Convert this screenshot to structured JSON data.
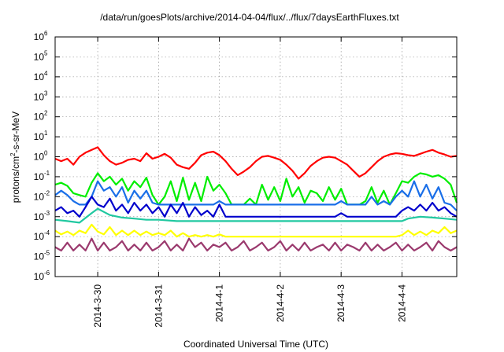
{
  "chart_data": {
    "type": "line",
    "title": "/data/run/goesPlots/archive/2014-04-04/flux/../flux/7daysEarthFluxes.txt",
    "xlabel": "Coordinated Universal Time (UTC)",
    "ylabel": {
      "base": "protons/cm",
      "sup": "2",
      "rest": "-s-sr-MeV"
    },
    "yscale": "log",
    "ylim_exponents": [
      -6,
      6
    ],
    "y_ticks": [
      {
        "base": "10",
        "exp": "-6"
      },
      {
        "base": "10",
        "exp": "-5"
      },
      {
        "base": "10",
        "exp": "-4"
      },
      {
        "base": "10",
        "exp": "-3"
      },
      {
        "base": "10",
        "exp": "-2"
      },
      {
        "base": "10",
        "exp": "-1"
      },
      {
        "base": "10",
        "exp": "0"
      },
      {
        "base": "10",
        "exp": "1"
      },
      {
        "base": "10",
        "exp": "2"
      },
      {
        "base": "10",
        "exp": "3"
      },
      {
        "base": "10",
        "exp": "4"
      },
      {
        "base": "10",
        "exp": "5"
      },
      {
        "base": "10",
        "exp": "6"
      }
    ],
    "x_range_days": [
      -1.7,
      4.9
    ],
    "x_ticks": [
      {
        "label": "2014-3-30",
        "day": -1
      },
      {
        "label": "2014-3-31",
        "day": 0
      },
      {
        "label": "2014-4-1",
        "day": 1
      },
      {
        "label": "2014-4-2",
        "day": 2
      },
      {
        "label": "2014-4-3",
        "day": 3
      },
      {
        "label": "2014-4-4",
        "day": 4
      }
    ],
    "grid": true,
    "series": [
      {
        "color": "#ff0000",
        "x": [
          -1.7,
          -1.6,
          -1.5,
          -1.4,
          -1.3,
          -1.2,
          -1.1,
          -1.0,
          -0.9,
          -0.8,
          -0.7,
          -0.6,
          -0.5,
          -0.4,
          -0.3,
          -0.2,
          -0.1,
          0.0,
          0.1,
          0.2,
          0.3,
          0.4,
          0.5,
          0.6,
          0.7,
          0.8,
          0.9,
          1.0,
          1.1,
          1.2,
          1.3,
          1.4,
          1.5,
          1.6,
          1.7,
          1.8,
          1.9,
          2.0,
          2.1,
          2.2,
          2.3,
          2.4,
          2.5,
          2.6,
          2.7,
          2.8,
          2.9,
          3.0,
          3.1,
          3.2,
          3.3,
          3.4,
          3.5,
          3.6,
          3.7,
          3.8,
          3.9,
          4.0,
          4.1,
          4.2,
          4.3,
          4.4,
          4.5,
          4.6,
          4.7,
          4.8,
          4.9
        ],
        "y": [
          0.8,
          0.6,
          0.8,
          0.4,
          1.0,
          1.6,
          2.2,
          3.0,
          1.2,
          0.6,
          0.4,
          0.5,
          0.7,
          0.8,
          0.6,
          1.5,
          0.8,
          1.0,
          1.4,
          0.9,
          0.4,
          0.3,
          0.25,
          0.5,
          1.2,
          1.6,
          1.8,
          1.2,
          0.6,
          0.25,
          0.12,
          0.18,
          0.3,
          0.6,
          1.0,
          1.1,
          0.9,
          0.7,
          0.4,
          0.2,
          0.08,
          0.15,
          0.35,
          0.6,
          0.9,
          1.0,
          0.9,
          0.6,
          0.4,
          0.2,
          0.1,
          0.15,
          0.3,
          0.6,
          1.0,
          1.3,
          1.5,
          1.4,
          1.2,
          1.1,
          1.4,
          1.8,
          2.2,
          1.6,
          1.3,
          1.0,
          1.1
        ]
      },
      {
        "color": "#00ee00",
        "x": [
          -1.7,
          -1.6,
          -1.5,
          -1.4,
          -1.3,
          -1.2,
          -1.1,
          -1.0,
          -0.9,
          -0.8,
          -0.7,
          -0.6,
          -0.5,
          -0.4,
          -0.3,
          -0.2,
          -0.1,
          0.0,
          0.1,
          0.2,
          0.3,
          0.4,
          0.5,
          0.6,
          0.7,
          0.8,
          0.9,
          1.0,
          1.1,
          1.2,
          1.3,
          1.4,
          1.5,
          1.6,
          1.7,
          1.8,
          1.9,
          2.0,
          2.1,
          2.2,
          2.3,
          2.4,
          2.5,
          2.6,
          2.7,
          2.8,
          2.9,
          3.0,
          3.1,
          3.2,
          3.3,
          3.4,
          3.5,
          3.6,
          3.7,
          3.8,
          3.9,
          4.0,
          4.1,
          4.2,
          4.3,
          4.4,
          4.5,
          4.6,
          4.7,
          4.8,
          4.9
        ],
        "y": [
          0.04,
          0.05,
          0.035,
          0.015,
          0.012,
          0.01,
          0.05,
          0.15,
          0.06,
          0.1,
          0.04,
          0.08,
          0.02,
          0.06,
          0.03,
          0.09,
          0.012,
          0.004,
          0.01,
          0.06,
          0.006,
          0.09,
          0.007,
          0.05,
          0.006,
          0.1,
          0.02,
          0.04,
          0.015,
          0.004,
          0.004,
          0.004,
          0.008,
          0.004,
          0.04,
          0.007,
          0.03,
          0.006,
          0.08,
          0.01,
          0.03,
          0.005,
          0.02,
          0.015,
          0.006,
          0.03,
          0.007,
          0.025,
          0.004,
          0.004,
          0.004,
          0.006,
          0.03,
          0.005,
          0.02,
          0.004,
          0.015,
          0.06,
          0.05,
          0.1,
          0.15,
          0.13,
          0.1,
          0.12,
          0.08,
          0.04,
          0.005
        ]
      },
      {
        "color": "#1a6fe8",
        "x": [
          -1.7,
          -1.6,
          -1.5,
          -1.4,
          -1.3,
          -1.2,
          -1.1,
          -1.0,
          -0.9,
          -0.8,
          -0.7,
          -0.6,
          -0.5,
          -0.4,
          -0.3,
          -0.2,
          -0.1,
          0.0,
          0.1,
          0.2,
          0.3,
          0.4,
          0.5,
          0.6,
          0.7,
          0.8,
          0.9,
          1.0,
          1.1,
          1.2,
          1.3,
          1.4,
          1.5,
          1.6,
          1.7,
          1.8,
          1.9,
          2.0,
          2.1,
          2.2,
          2.3,
          2.4,
          2.5,
          2.6,
          2.7,
          2.8,
          2.9,
          3.0,
          3.1,
          3.2,
          3.3,
          3.4,
          3.5,
          3.6,
          3.7,
          3.8,
          3.9,
          4.0,
          4.1,
          4.2,
          4.3,
          4.4,
          4.5,
          4.6,
          4.7,
          4.8,
          4.9
        ],
        "y": [
          0.012,
          0.02,
          0.012,
          0.006,
          0.004,
          0.004,
          0.01,
          0.06,
          0.02,
          0.03,
          0.01,
          0.03,
          0.005,
          0.02,
          0.008,
          0.02,
          0.005,
          0.004,
          0.004,
          0.004,
          0.004,
          0.004,
          0.004,
          0.004,
          0.004,
          0.004,
          0.004,
          0.006,
          0.004,
          0.004,
          0.004,
          0.004,
          0.004,
          0.004,
          0.004,
          0.004,
          0.004,
          0.004,
          0.004,
          0.004,
          0.004,
          0.004,
          0.004,
          0.004,
          0.004,
          0.004,
          0.004,
          0.006,
          0.004,
          0.004,
          0.004,
          0.004,
          0.01,
          0.004,
          0.006,
          0.004,
          0.01,
          0.02,
          0.01,
          0.06,
          0.01,
          0.04,
          0.008,
          0.03,
          0.005,
          0.004,
          0.002
        ]
      },
      {
        "color": "#0000cc",
        "x": [
          -1.7,
          -1.6,
          -1.5,
          -1.4,
          -1.3,
          -1.2,
          -1.1,
          -1.0,
          -0.9,
          -0.8,
          -0.7,
          -0.6,
          -0.5,
          -0.4,
          -0.3,
          -0.2,
          -0.1,
          0.0,
          0.1,
          0.2,
          0.3,
          0.4,
          0.5,
          0.6,
          0.7,
          0.8,
          0.9,
          1.0,
          1.1,
          1.2,
          1.3,
          1.4,
          1.5,
          1.6,
          1.7,
          1.8,
          1.9,
          2.0,
          2.1,
          2.2,
          2.3,
          2.4,
          2.5,
          2.6,
          2.7,
          2.8,
          2.9,
          3.0,
          3.1,
          3.2,
          3.3,
          3.4,
          3.5,
          3.6,
          3.7,
          3.8,
          3.9,
          4.0,
          4.1,
          4.2,
          4.3,
          4.4,
          4.5,
          4.6,
          4.7,
          4.8,
          4.9
        ],
        "y": [
          0.002,
          0.003,
          0.0015,
          0.002,
          0.001,
          0.003,
          0.01,
          0.004,
          0.003,
          0.008,
          0.002,
          0.004,
          0.0015,
          0.005,
          0.002,
          0.004,
          0.0015,
          0.003,
          0.001,
          0.004,
          0.0015,
          0.005,
          0.001,
          0.003,
          0.0012,
          0.002,
          0.001,
          0.004,
          0.001,
          0.001,
          0.001,
          0.001,
          0.001,
          0.001,
          0.001,
          0.001,
          0.001,
          0.001,
          0.001,
          0.001,
          0.001,
          0.001,
          0.001,
          0.001,
          0.001,
          0.001,
          0.001,
          0.0015,
          0.001,
          0.001,
          0.001,
          0.001,
          0.001,
          0.001,
          0.001,
          0.001,
          0.001,
          0.002,
          0.003,
          0.002,
          0.004,
          0.002,
          0.005,
          0.002,
          0.003,
          0.0015,
          0.001
        ]
      },
      {
        "color": "#20c8a0",
        "x": [
          -1.7,
          -1.5,
          -1.3,
          -1.1,
          -1.0,
          -0.8,
          -0.6,
          -0.4,
          -0.2,
          0.0,
          0.3,
          0.6,
          1.0,
          1.5,
          2.0,
          2.5,
          3.0,
          3.5,
          4.0,
          4.1,
          4.3,
          4.5,
          4.7,
          4.9
        ],
        "y": [
          0.0007,
          0.0006,
          0.0005,
          0.0015,
          0.0025,
          0.0012,
          0.0009,
          0.0008,
          0.0007,
          0.0007,
          0.0006,
          0.0006,
          0.0006,
          0.0006,
          0.0006,
          0.0006,
          0.0006,
          0.0006,
          0.0006,
          0.0008,
          0.001,
          0.0009,
          0.0008,
          0.0007
        ]
      },
      {
        "color": "#ffff00",
        "x": [
          -1.7,
          -1.6,
          -1.5,
          -1.4,
          -1.3,
          -1.2,
          -1.1,
          -1.0,
          -0.9,
          -0.8,
          -0.7,
          -0.6,
          -0.5,
          -0.4,
          -0.3,
          -0.2,
          -0.1,
          0.0,
          0.1,
          0.2,
          0.3,
          0.4,
          0.5,
          0.6,
          0.7,
          0.8,
          0.9,
          1.0,
          1.1,
          1.2,
          1.3,
          1.4,
          1.5,
          1.6,
          1.7,
          1.8,
          1.9,
          2.0,
          2.1,
          2.2,
          2.3,
          2.4,
          2.5,
          2.6,
          2.7,
          2.8,
          2.9,
          3.0,
          3.1,
          3.2,
          3.3,
          3.4,
          3.5,
          3.6,
          3.7,
          3.8,
          3.9,
          4.0,
          4.1,
          4.2,
          4.3,
          4.4,
          4.5,
          4.6,
          4.7,
          4.8,
          4.9
        ],
        "y": [
          0.0002,
          0.00013,
          0.00018,
          0.00012,
          0.0002,
          0.00015,
          0.0004,
          0.00018,
          0.00013,
          0.0003,
          0.00012,
          0.0002,
          0.00012,
          0.0002,
          0.00012,
          0.00018,
          0.00012,
          0.00015,
          0.00012,
          0.0002,
          0.0001,
          0.00015,
          0.0001,
          0.00012,
          0.0001,
          0.00012,
          0.0001,
          0.00013,
          0.0001,
          0.0001,
          0.0001,
          0.0001,
          0.0001,
          0.0001,
          0.0001,
          0.0001,
          0.0001,
          0.0001,
          0.0001,
          0.0001,
          0.0001,
          0.0001,
          0.0001,
          0.0001,
          0.0001,
          0.0001,
          0.0001,
          0.0001,
          0.0001,
          0.0001,
          0.0001,
          0.0001,
          0.0001,
          0.0001,
          0.0001,
          0.0001,
          0.0001,
          0.00012,
          0.0002,
          0.00012,
          0.00018,
          0.00012,
          0.0002,
          0.00015,
          0.0003,
          0.00015,
          0.0002
        ]
      },
      {
        "color": "#9b3a6e",
        "x": [
          -1.7,
          -1.6,
          -1.5,
          -1.4,
          -1.3,
          -1.2,
          -1.1,
          -1.0,
          -0.9,
          -0.8,
          -0.7,
          -0.6,
          -0.5,
          -0.4,
          -0.3,
          -0.2,
          -0.1,
          0.0,
          0.1,
          0.2,
          0.3,
          0.4,
          0.5,
          0.6,
          0.7,
          0.8,
          0.9,
          1.0,
          1.1,
          1.2,
          1.3,
          1.4,
          1.5,
          1.6,
          1.7,
          1.8,
          1.9,
          2.0,
          2.1,
          2.2,
          2.3,
          2.4,
          2.5,
          2.6,
          2.7,
          2.8,
          2.9,
          3.0,
          3.1,
          3.2,
          3.3,
          3.4,
          3.5,
          3.6,
          3.7,
          3.8,
          3.9,
          4.0,
          4.1,
          4.2,
          4.3,
          4.4,
          4.5,
          4.6,
          4.7,
          4.8,
          4.9
        ],
        "y": [
          3e-05,
          2e-05,
          5e-05,
          2e-05,
          4e-05,
          2e-05,
          8e-05,
          2e-05,
          5e-05,
          2e-05,
          3e-05,
          6e-05,
          2e-05,
          4e-05,
          2e-05,
          5e-05,
          2e-05,
          3e-05,
          6e-05,
          2e-05,
          4e-05,
          2e-05,
          8e-05,
          3e-05,
          5e-05,
          2e-05,
          4e-05,
          3e-05,
          5e-05,
          2e-05,
          3e-05,
          6e-05,
          2e-05,
          3e-05,
          5e-05,
          2e-05,
          3e-05,
          6e-05,
          2e-05,
          4e-05,
          2e-05,
          5e-05,
          2e-05,
          3e-05,
          4e-05,
          2e-05,
          5e-05,
          2e-05,
          4e-05,
          3e-05,
          2e-05,
          5e-05,
          2e-05,
          4e-05,
          2e-05,
          3e-05,
          5e-05,
          2e-05,
          4e-05,
          2e-05,
          3e-05,
          5e-05,
          2e-05,
          6e-05,
          3e-05,
          2e-05,
          3e-05
        ]
      }
    ]
  }
}
